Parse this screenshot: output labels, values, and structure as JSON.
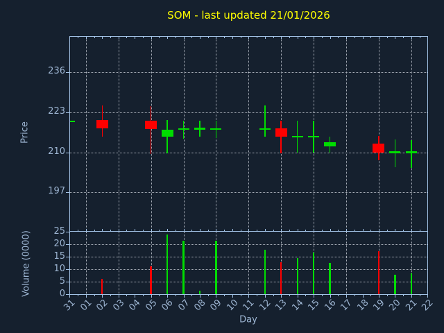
{
  "title": {
    "text": "SOM - last updated 21/01/2026",
    "color": "#fdfd00"
  },
  "colors": {
    "background": "#15202e",
    "axis": "#a3c3e6",
    "tick_text": "#9db5d2",
    "grid": "#aab0ba",
    "up": "#00dd00",
    "down": "#ff0000"
  },
  "chart_data": {
    "type": "candlestick",
    "title": "SOM - last updated 21/01/2026",
    "xlabel": "Day",
    "ylabel_price": "Price",
    "ylabel_volume": "Volume (0000)",
    "x_categories": [
      "31",
      "01",
      "02",
      "03",
      "04",
      "05",
      "06",
      "07",
      "08",
      "09",
      "10",
      "11",
      "12",
      "13",
      "14",
      "15",
      "16",
      "17",
      "18",
      "19",
      "20",
      "21",
      "22"
    ],
    "grid_x_categories": [
      "01",
      "03",
      "05",
      "07",
      "09",
      "11",
      "13",
      "15",
      "17",
      "19",
      "21"
    ],
    "price_ticks": [
      197,
      210,
      223,
      236
    ],
    "price_ylim": [
      184.4,
      247.6
    ],
    "volume_ticks": [
      0,
      5,
      10,
      15,
      20,
      25
    ],
    "volume_ylim": [
      0,
      25
    ],
    "grid": "dotted",
    "legend": "none",
    "candles": [
      {
        "day": "31",
        "open": 219.9,
        "high": 220.3,
        "low": 219.7,
        "close": 220.2,
        "volume": 0
      },
      {
        "day": "02",
        "open": 220.5,
        "high": 225.3,
        "low": 215.0,
        "close": 217.7,
        "volume": 6.2
      },
      {
        "day": "05",
        "open": 220.4,
        "high": 225.1,
        "low": 209.5,
        "close": 217.5,
        "volume": 11.0
      },
      {
        "day": "06",
        "open": 215.0,
        "high": 220.6,
        "low": 209.7,
        "close": 217.3,
        "volume": 23.8
      },
      {
        "day": "07",
        "open": 217.5,
        "high": 220.3,
        "low": 214.4,
        "close": 217.6,
        "volume": 21.5
      },
      {
        "day": "08",
        "open": 217.6,
        "high": 220.4,
        "low": 215.0,
        "close": 217.7,
        "volume": 1.4
      },
      {
        "day": "09",
        "open": 217.5,
        "high": 220.2,
        "low": 214.6,
        "close": 217.6,
        "volume": 21.5
      },
      {
        "day": "12",
        "open": 217.5,
        "high": 225.3,
        "low": 215.0,
        "close": 217.6,
        "volume": 17.8
      },
      {
        "day": "13",
        "open": 217.7,
        "high": 220.4,
        "low": 209.7,
        "close": 215.1,
        "volume": 12.9
      },
      {
        "day": "14",
        "open": 215.1,
        "high": 220.4,
        "low": 209.9,
        "close": 215.2,
        "volume": 14.5
      },
      {
        "day": "15",
        "open": 215.1,
        "high": 220.3,
        "low": 210.0,
        "close": 215.2,
        "volume": 16.8
      },
      {
        "day": "16",
        "open": 212.0,
        "high": 215.1,
        "low": 209.9,
        "close": 213.4,
        "volume": 12.6
      },
      {
        "day": "19",
        "open": 212.9,
        "high": 215.3,
        "low": 207.5,
        "close": 210.0,
        "volume": 17.1
      },
      {
        "day": "20",
        "open": 209.9,
        "high": 214.3,
        "low": 205.1,
        "close": 210.1,
        "volume": 7.8
      },
      {
        "day": "21",
        "open": 209.9,
        "high": 214.0,
        "low": 205.0,
        "close": 210.1,
        "volume": 8.3
      }
    ]
  }
}
